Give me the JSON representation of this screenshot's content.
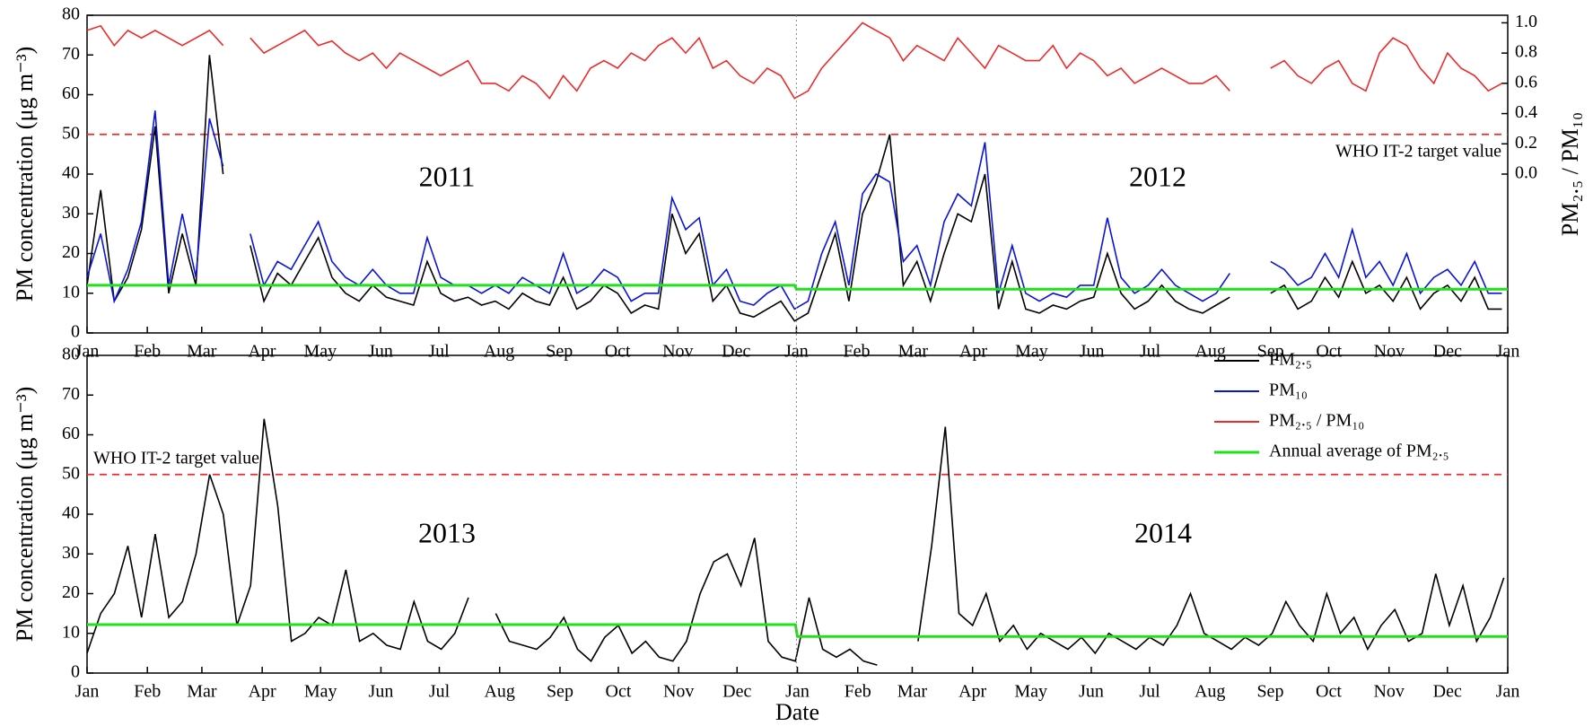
{
  "chart_data": [
    {
      "type": "line",
      "y_label": "PM concentration (μg m⁻³)",
      "y2_label": "PM₂.₅ / PM₁₀",
      "annotations": [
        "2011",
        "2012"
      ],
      "reference_line": {
        "value": 50,
        "label": "WHO IT-2 target value",
        "color": "#ee2a2a"
      },
      "xlim": [
        0,
        731
      ],
      "xticks": [
        {
          "value": 0,
          "label": "Jan"
        },
        {
          "value": 31,
          "label": "Feb"
        },
        {
          "value": 59,
          "label": "Mar"
        },
        {
          "value": 90,
          "label": "Apr"
        },
        {
          "value": 120,
          "label": "May"
        },
        {
          "value": 151,
          "label": "Jun"
        },
        {
          "value": 181,
          "label": "Jul"
        },
        {
          "value": 212,
          "label": "Aug"
        },
        {
          "value": 243,
          "label": "Sep"
        },
        {
          "value": 273,
          "label": "Oct"
        },
        {
          "value": 304,
          "label": "Nov"
        },
        {
          "value": 334,
          "label": "Dec"
        },
        {
          "value": 365,
          "label": "Jan"
        },
        {
          "value": 396,
          "label": "Feb"
        },
        {
          "value": 425,
          "label": "Mar"
        },
        {
          "value": 456,
          "label": "Apr"
        },
        {
          "value": 486,
          "label": "May"
        },
        {
          "value": 517,
          "label": "Jun"
        },
        {
          "value": 547,
          "label": "Jul"
        },
        {
          "value": 578,
          "label": "Aug"
        },
        {
          "value": 609,
          "label": "Sep"
        },
        {
          "value": 639,
          "label": "Oct"
        },
        {
          "value": 670,
          "label": "Nov"
        },
        {
          "value": 700,
          "label": "Dec"
        },
        {
          "value": 731,
          "label": "Jan"
        }
      ],
      "ylim": [
        0,
        80
      ],
      "yticks": [
        0,
        10,
        20,
        30,
        40,
        50,
        60,
        70,
        80
      ],
      "y2lim": [
        -1.05,
        1.05
      ],
      "y2ticks": [
        {
          "value": 0,
          "label": "0.0"
        },
        0.2,
        0.4,
        0.6,
        0.8,
        {
          "value": 1,
          "label": "1.0"
        }
      ],
      "x": [
        0,
        7,
        14,
        21,
        28,
        35,
        42,
        49,
        56,
        63,
        70,
        77,
        84,
        91,
        98,
        105,
        112,
        119,
        126,
        133,
        140,
        147,
        154,
        161,
        168,
        175,
        182,
        189,
        196,
        203,
        210,
        217,
        224,
        231,
        238,
        245,
        252,
        259,
        266,
        273,
        280,
        287,
        294,
        301,
        308,
        315,
        322,
        329,
        336,
        343,
        350,
        357,
        364,
        371,
        378,
        385,
        392,
        399,
        406,
        413,
        420,
        427,
        434,
        441,
        448,
        455,
        462,
        469,
        476,
        483,
        490,
        497,
        504,
        511,
        518,
        525,
        532,
        539,
        546,
        553,
        560,
        567,
        574,
        581,
        588,
        595,
        602,
        609,
        616,
        623,
        630,
        637,
        644,
        651,
        658,
        665,
        672,
        679,
        686,
        693,
        700,
        707,
        714,
        721,
        728
      ],
      "series": [
        {
          "name": "PM₂.₅",
          "color": "#000000",
          "values": [
            12,
            36,
            8,
            14,
            26,
            52,
            10,
            25,
            12,
            70,
            40,
            null,
            22,
            8,
            15,
            12,
            18,
            24,
            14,
            10,
            8,
            12,
            9,
            8,
            7,
            18,
            10,
            8,
            9,
            7,
            8,
            6,
            10,
            8,
            7,
            14,
            6,
            8,
            12,
            10,
            5,
            7,
            6,
            30,
            20,
            25,
            8,
            12,
            5,
            4,
            6,
            8,
            3,
            5,
            15,
            25,
            8,
            30,
            38,
            50,
            12,
            18,
            8,
            20,
            30,
            28,
            40,
            6,
            18,
            6,
            5,
            7,
            6,
            8,
            9,
            20,
            10,
            6,
            8,
            12,
            8,
            6,
            5,
            7,
            9,
            null,
            null,
            10,
            12,
            6,
            8,
            14,
            9,
            18,
            10,
            12,
            8,
            14,
            6,
            10,
            12,
            8,
            14,
            6,
            6
          ]
        },
        {
          "name": "PM₁₀",
          "color": "#0a14d8",
          "values": [
            14,
            25,
            8,
            16,
            28,
            56,
            12,
            30,
            14,
            54,
            42,
            null,
            25,
            12,
            18,
            16,
            22,
            28,
            18,
            14,
            12,
            16,
            12,
            10,
            10,
            24,
            14,
            12,
            12,
            10,
            12,
            10,
            14,
            12,
            10,
            20,
            10,
            12,
            16,
            14,
            8,
            10,
            10,
            34,
            26,
            29,
            12,
            16,
            8,
            7,
            10,
            12,
            6,
            8,
            20,
            28,
            12,
            35,
            40,
            38,
            18,
            22,
            12,
            28,
            35,
            32,
            48,
            10,
            22,
            10,
            8,
            10,
            9,
            12,
            12,
            29,
            14,
            10,
            12,
            16,
            12,
            10,
            8,
            10,
            15,
            null,
            null,
            18,
            16,
            12,
            14,
            20,
            14,
            26,
            14,
            18,
            12,
            20,
            10,
            14,
            16,
            12,
            18,
            10,
            10
          ]
        },
        {
          "name": "PM₂.₅ / PM₁₀",
          "color": "#ee2a2a",
          "axis": "y2",
          "values": [
            0.95,
            0.98,
            0.85,
            0.95,
            0.9,
            0.95,
            0.9,
            0.85,
            0.9,
            0.95,
            0.85,
            null,
            0.9,
            0.8,
            0.85,
            0.9,
            0.95,
            0.85,
            0.88,
            0.8,
            0.75,
            0.8,
            0.7,
            0.8,
            0.75,
            0.7,
            0.65,
            0.7,
            0.75,
            0.6,
            0.6,
            0.55,
            0.65,
            0.6,
            0.5,
            0.65,
            0.55,
            0.7,
            0.75,
            0.7,
            0.8,
            0.75,
            0.85,
            0.9,
            0.8,
            0.9,
            0.7,
            0.75,
            0.65,
            0.6,
            0.7,
            0.65,
            0.5,
            0.55,
            0.7,
            0.8,
            0.9,
            1.0,
            0.95,
            0.9,
            0.75,
            0.85,
            0.8,
            0.75,
            0.9,
            0.8,
            0.7,
            0.85,
            0.8,
            0.75,
            0.75,
            0.85,
            0.7,
            0.8,
            0.75,
            0.65,
            0.7,
            0.6,
            0.65,
            0.7,
            0.65,
            0.6,
            0.6,
            0.65,
            0.55,
            null,
            null,
            0.7,
            0.75,
            0.65,
            0.6,
            0.7,
            0.75,
            0.6,
            0.55,
            0.8,
            0.9,
            0.85,
            0.7,
            0.6,
            0.8,
            0.7,
            0.65,
            0.55,
            0.6
          ]
        },
        {
          "name": "Annual average of PM₂.₅",
          "color": "#22e01c",
          "x": [
            0,
            364,
            365,
            731
          ],
          "values": [
            12,
            12,
            11,
            11
          ]
        }
      ]
    },
    {
      "type": "line",
      "y_label": "PM concentration (μg m⁻³)",
      "x_label": "Date",
      "annotations": [
        "2013",
        "2014"
      ],
      "reference_line": {
        "value": 50,
        "label": "WHO IT-2 target value",
        "color": "#ee2a2a"
      },
      "legend": "upper right",
      "xlim": [
        0,
        730
      ],
      "xticks": [
        {
          "value": 0,
          "label": "Jan"
        },
        {
          "value": 31,
          "label": "Feb"
        },
        {
          "value": 59,
          "label": "Mar"
        },
        {
          "value": 90,
          "label": "Apr"
        },
        {
          "value": 120,
          "label": "May"
        },
        {
          "value": 151,
          "label": "Jun"
        },
        {
          "value": 181,
          "label": "Jul"
        },
        {
          "value": 212,
          "label": "Aug"
        },
        {
          "value": 243,
          "label": "Sep"
        },
        {
          "value": 273,
          "label": "Oct"
        },
        {
          "value": 304,
          "label": "Nov"
        },
        {
          "value": 334,
          "label": "Dec"
        },
        {
          "value": 365,
          "label": "Jan"
        },
        {
          "value": 396,
          "label": "Feb"
        },
        {
          "value": 424,
          "label": "Mar"
        },
        {
          "value": 455,
          "label": "Apr"
        },
        {
          "value": 485,
          "label": "May"
        },
        {
          "value": 516,
          "label": "Jun"
        },
        {
          "value": 546,
          "label": "Jul"
        },
        {
          "value": 577,
          "label": "Aug"
        },
        {
          "value": 608,
          "label": "Sep"
        },
        {
          "value": 638,
          "label": "Oct"
        },
        {
          "value": 669,
          "label": "Nov"
        },
        {
          "value": 699,
          "label": "Dec"
        },
        {
          "value": 730,
          "label": "Jan"
        }
      ],
      "ylim": [
        0,
        80
      ],
      "yticks": [
        0,
        10,
        20,
        30,
        40,
        50,
        60,
        70,
        80
      ],
      "x": [
        0,
        7,
        14,
        21,
        28,
        35,
        42,
        49,
        56,
        63,
        70,
        77,
        84,
        91,
        98,
        105,
        112,
        119,
        126,
        133,
        140,
        147,
        154,
        161,
        168,
        175,
        182,
        189,
        196,
        203,
        210,
        217,
        224,
        231,
        238,
        245,
        252,
        259,
        266,
        273,
        280,
        287,
        294,
        301,
        308,
        315,
        322,
        329,
        336,
        343,
        350,
        357,
        364,
        371,
        378,
        385,
        392,
        399,
        406,
        413,
        420,
        427,
        434,
        441,
        448,
        455,
        462,
        469,
        476,
        483,
        490,
        497,
        504,
        511,
        518,
        525,
        532,
        539,
        546,
        553,
        560,
        567,
        574,
        581,
        588,
        595,
        602,
        609,
        616,
        623,
        630,
        637,
        644,
        651,
        658,
        665,
        672,
        679,
        686,
        693,
        700,
        707,
        714,
        721,
        728
      ],
      "series": [
        {
          "color": "#000000",
          "values": [
            5,
            15,
            20,
            32,
            14,
            35,
            14,
            18,
            30,
            50,
            40,
            12,
            22,
            64,
            42,
            8,
            10,
            14,
            12,
            26,
            8,
            10,
            7,
            6,
            18,
            8,
            6,
            10,
            19,
            null,
            15,
            8,
            7,
            6,
            9,
            14,
            6,
            3,
            9,
            12,
            5,
            8,
            4,
            3,
            8,
            20,
            28,
            30,
            22,
            34,
            8,
            4,
            3,
            19,
            6,
            4,
            6,
            3,
            2,
            null,
            null,
            8,
            32,
            62,
            15,
            12,
            20,
            8,
            12,
            6,
            10,
            8,
            6,
            9,
            5,
            10,
            8,
            6,
            9,
            7,
            12,
            20,
            10,
            8,
            6,
            9,
            7,
            10,
            18,
            12,
            8,
            20,
            10,
            14,
            6,
            12,
            16,
            8,
            10,
            25,
            12,
            22,
            8,
            14,
            24
          ]
        },
        {
          "color": "#22e01c",
          "x": [
            0,
            364,
            365,
            730
          ],
          "values": [
            12.2,
            12.2,
            9.2,
            9.2
          ]
        }
      ]
    }
  ]
}
